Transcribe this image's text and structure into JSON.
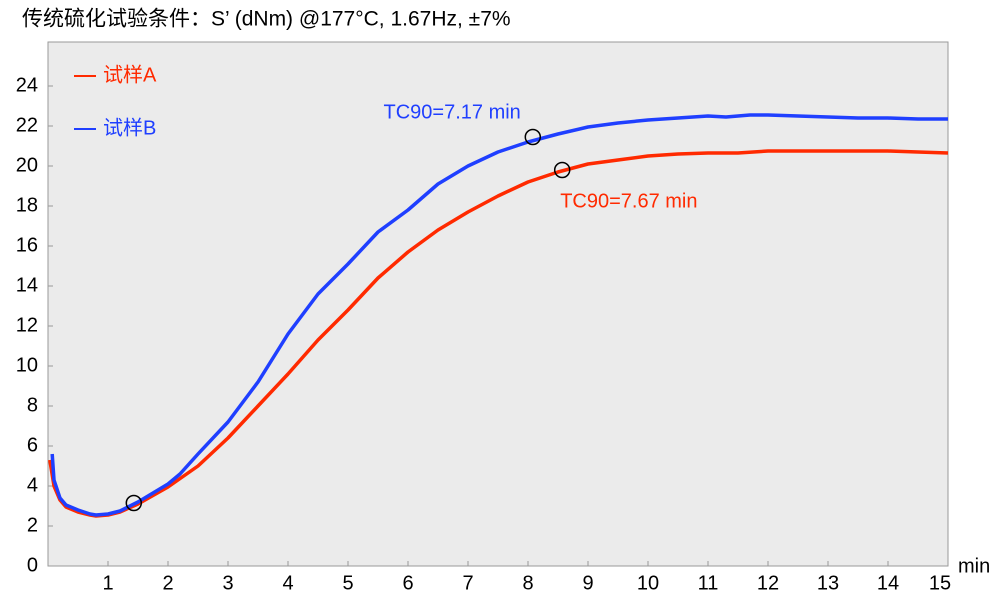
{
  "chart_data": {
    "type": "line",
    "title": "传统硫化试验条件：S’ (dNm) @177°C, 1.67Hz, ±7%",
    "x_label": "min",
    "xlim": [
      0,
      15
    ],
    "xticks": [
      1,
      2,
      3,
      4,
      5,
      6,
      7,
      8,
      9,
      10,
      11,
      12,
      13,
      14,
      15
    ],
    "ylim": [
      0,
      26.2
    ],
    "yticks": [
      0,
      2,
      4,
      6,
      8,
      10,
      12,
      14,
      16,
      18,
      20,
      22,
      24
    ],
    "grid": false,
    "legend": "upper left",
    "series": [
      {
        "name": "试样A",
        "color": "#ff2a00",
        "x": [
          0.03,
          0.1,
          0.2,
          0.3,
          0.5,
          0.7,
          0.8,
          1.0,
          1.2,
          1.5,
          2,
          2.5,
          3,
          3.5,
          4,
          4.5,
          5,
          5.5,
          6,
          6.5,
          7,
          7.5,
          8,
          8.5,
          9,
          9.5,
          10,
          10.5,
          11,
          11.5,
          12,
          13,
          14,
          14.5,
          15
        ],
        "values": [
          5.3,
          4.0,
          3.3,
          2.95,
          2.7,
          2.55,
          2.5,
          2.55,
          2.7,
          3.1,
          3.95,
          5.0,
          6.4,
          8.0,
          9.6,
          11.3,
          12.8,
          14.4,
          15.7,
          16.8,
          17.7,
          18.5,
          19.2,
          19.7,
          20.1,
          20.3,
          20.5,
          20.6,
          20.65,
          20.65,
          20.75,
          20.75,
          20.75,
          20.7,
          20.65
        ]
      },
      {
        "name": "试样B",
        "color": "#1f3fff",
        "x": [
          0.07,
          0.1,
          0.2,
          0.3,
          0.5,
          0.7,
          0.8,
          1.0,
          1.2,
          1.5,
          2,
          2.2,
          2.5,
          3,
          3.2,
          3.5,
          4,
          4.5,
          5,
          5.5,
          6,
          6.5,
          7,
          7.5,
          8,
          8.5,
          9,
          9.5,
          10,
          10.5,
          11,
          11.3,
          11.7,
          12,
          12.5,
          13,
          13.5,
          14,
          14.5,
          15
        ],
        "values": [
          5.6,
          4.3,
          3.4,
          3.05,
          2.8,
          2.6,
          2.55,
          2.6,
          2.75,
          3.2,
          4.1,
          4.6,
          5.6,
          7.2,
          8.0,
          9.2,
          11.6,
          13.6,
          15.1,
          16.7,
          17.8,
          19.1,
          20.0,
          20.7,
          21.2,
          21.6,
          21.95,
          22.15,
          22.3,
          22.4,
          22.5,
          22.45,
          22.55,
          22.55,
          22.5,
          22.45,
          22.4,
          22.4,
          22.35,
          22.35
        ]
      }
    ],
    "markers": [
      {
        "x": 1.43,
        "y": 3.15
      },
      {
        "x": 8.08,
        "y": 21.45
      },
      {
        "x": 8.57,
        "y": 19.8
      }
    ],
    "annotations": [
      {
        "text": "TC90=7.17 min",
        "color": "#1f3fff"
      },
      {
        "text": "TC90=7.67 min",
        "color": "#ff2a00"
      }
    ]
  }
}
